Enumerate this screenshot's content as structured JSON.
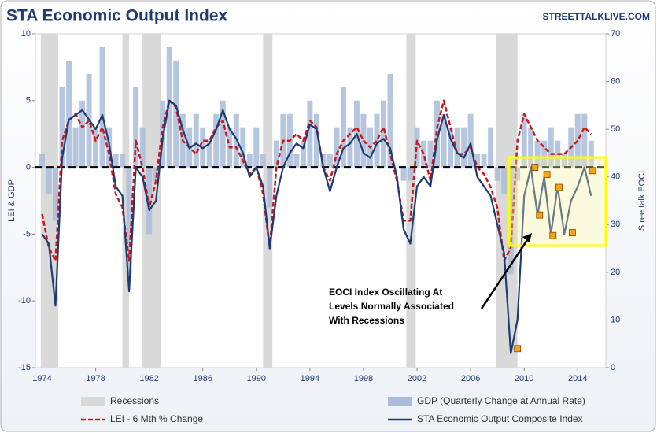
{
  "chart_data": {
    "type": "combo",
    "title": "STA Economic Output Index",
    "source": "STREETTALKLIVE.COM",
    "ylabel": "LEI & GDP",
    "y2label": "Streettalk EOCI",
    "xlim": [
      1973.5,
      2016.1
    ],
    "xticks": [
      1974,
      1978,
      1982,
      1986,
      1990,
      1994,
      1998,
      2002,
      2006,
      2010,
      2014
    ],
    "ylim": [
      -15,
      10
    ],
    "yticks": [
      10,
      5,
      0,
      -5,
      -10,
      -15
    ],
    "y2lim": [
      0,
      70
    ],
    "y2ticks": [
      70,
      60,
      50,
      40,
      30,
      20,
      10,
      0
    ],
    "hline": 0,
    "recessions": {
      "name": "Recessions",
      "color": "#d9d9d9",
      "spans": [
        [
          1973.9,
          1975.2
        ],
        [
          1980.0,
          1980.5
        ],
        [
          1981.5,
          1982.9
        ],
        [
          1990.5,
          1991.2
        ],
        [
          2001.2,
          2001.9
        ],
        [
          2007.9,
          2009.5
        ]
      ]
    },
    "x": [
      1974,
      1974.5,
      1975,
      1975.5,
      1976,
      1976.5,
      1977,
      1977.5,
      1978,
      1978.5,
      1979,
      1979.5,
      1980,
      1980.5,
      1981,
      1981.5,
      1982,
      1982.5,
      1983,
      1983.5,
      1984,
      1984.5,
      1985,
      1985.5,
      1986,
      1986.5,
      1987,
      1987.5,
      1988,
      1988.5,
      1989,
      1989.5,
      1990,
      1990.5,
      1991,
      1991.5,
      1992,
      1992.5,
      1993,
      1993.5,
      1994,
      1994.5,
      1995,
      1995.5,
      1996,
      1996.5,
      1997,
      1997.5,
      1998,
      1998.5,
      1999,
      1999.5,
      2000,
      2000.5,
      2001,
      2001.5,
      2002,
      2002.5,
      2003,
      2003.5,
      2004,
      2004.5,
      2005,
      2005.5,
      2006,
      2006.5,
      2007,
      2007.5,
      2008,
      2008.5,
      2009,
      2009.5,
      2010,
      2010.5,
      2011,
      2011.5,
      2012,
      2012.5,
      2013,
      2013.5,
      2014,
      2014.5,
      2015
    ],
    "series": [
      {
        "name": "GDP (Quarterly Change at Annual Rate)",
        "color": "#a9bcd9",
        "kind": "bar",
        "axis": "y",
        "values": [
          1,
          -2,
          -4,
          6,
          8,
          3,
          5,
          7,
          3,
          9,
          3,
          1,
          1,
          -8,
          6,
          3,
          -5,
          -1,
          5,
          9,
          8,
          4,
          3,
          4,
          3,
          2,
          4,
          5,
          3,
          4,
          3,
          1,
          3,
          1,
          -3,
          2,
          4,
          4,
          1,
          2,
          5,
          4,
          1,
          1,
          3,
          6,
          3,
          5,
          4,
          3,
          4,
          5,
          7,
          0,
          -1,
          -1,
          3,
          2,
          2,
          5,
          4,
          3,
          3,
          3,
          4,
          1,
          1,
          3,
          -1,
          -2,
          -8,
          -1,
          4,
          3,
          2,
          2,
          3,
          2,
          1,
          3,
          4,
          4,
          2
        ]
      },
      {
        "name": "LEI - 6 Mth % Change",
        "color": "#c8191b",
        "kind": "dashed",
        "axis": "y",
        "values": [
          -3.5,
          -6,
          -7,
          2,
          3.5,
          4,
          3,
          3.5,
          2,
          3,
          1,
          -2,
          -3,
          -7,
          2,
          0,
          -3,
          -1,
          3,
          5,
          4.5,
          2,
          1.5,
          1,
          2,
          2,
          3,
          3.5,
          1.5,
          1.5,
          0.5,
          -0.5,
          0,
          -2,
          -6,
          0,
          2,
          2,
          2.5,
          2,
          3.5,
          3,
          0,
          -1,
          1,
          2,
          2.5,
          3,
          2,
          1.5,
          2,
          3,
          1,
          -1,
          -4,
          -4,
          2,
          1,
          -1,
          3,
          5,
          3,
          1,
          1,
          1.5,
          0,
          -0.5,
          -1.5,
          -3,
          -7,
          -6,
          2,
          4,
          3,
          2,
          1.5,
          1,
          1,
          1,
          1.5,
          2,
          3,
          2.5
        ]
      },
      {
        "name": "STA Economic Output Composite Index",
        "color": "#1f3b73",
        "kind": "line",
        "axis": "y2",
        "values": [
          28,
          26,
          13,
          44,
          52,
          53,
          54,
          52,
          50,
          53,
          47,
          38,
          36,
          16,
          42,
          40,
          33,
          35,
          48,
          56,
          55,
          50,
          46,
          47,
          46,
          47,
          50,
          54,
          50,
          48,
          45,
          40,
          42,
          38,
          25,
          36,
          42,
          45,
          47,
          46,
          51,
          50,
          42,
          37,
          42,
          46,
          47,
          49,
          45,
          44,
          47,
          48,
          46,
          40,
          29,
          26,
          38,
          40,
          38,
          48,
          53,
          48,
          45,
          44,
          47,
          40,
          38,
          36,
          30,
          24,
          3,
          10,
          36,
          42,
          32,
          40,
          28,
          38,
          28,
          35,
          38,
          42,
          36
        ]
      }
    ],
    "markers": {
      "color": "#f7a21b",
      "axis": "y2",
      "x": [
        2009.5,
        2010.8,
        2011.15,
        2011.7,
        2012.15,
        2012.6,
        2013.6,
        2015.1
      ],
      "values": [
        4,
        42,
        32,
        40.5,
        27.7,
        37.8,
        28.3,
        41.3
      ]
    },
    "annotation": [
      "EOCI Index Oscillating At",
      "Levels Normally Associated",
      "With Recessions"
    ]
  }
}
